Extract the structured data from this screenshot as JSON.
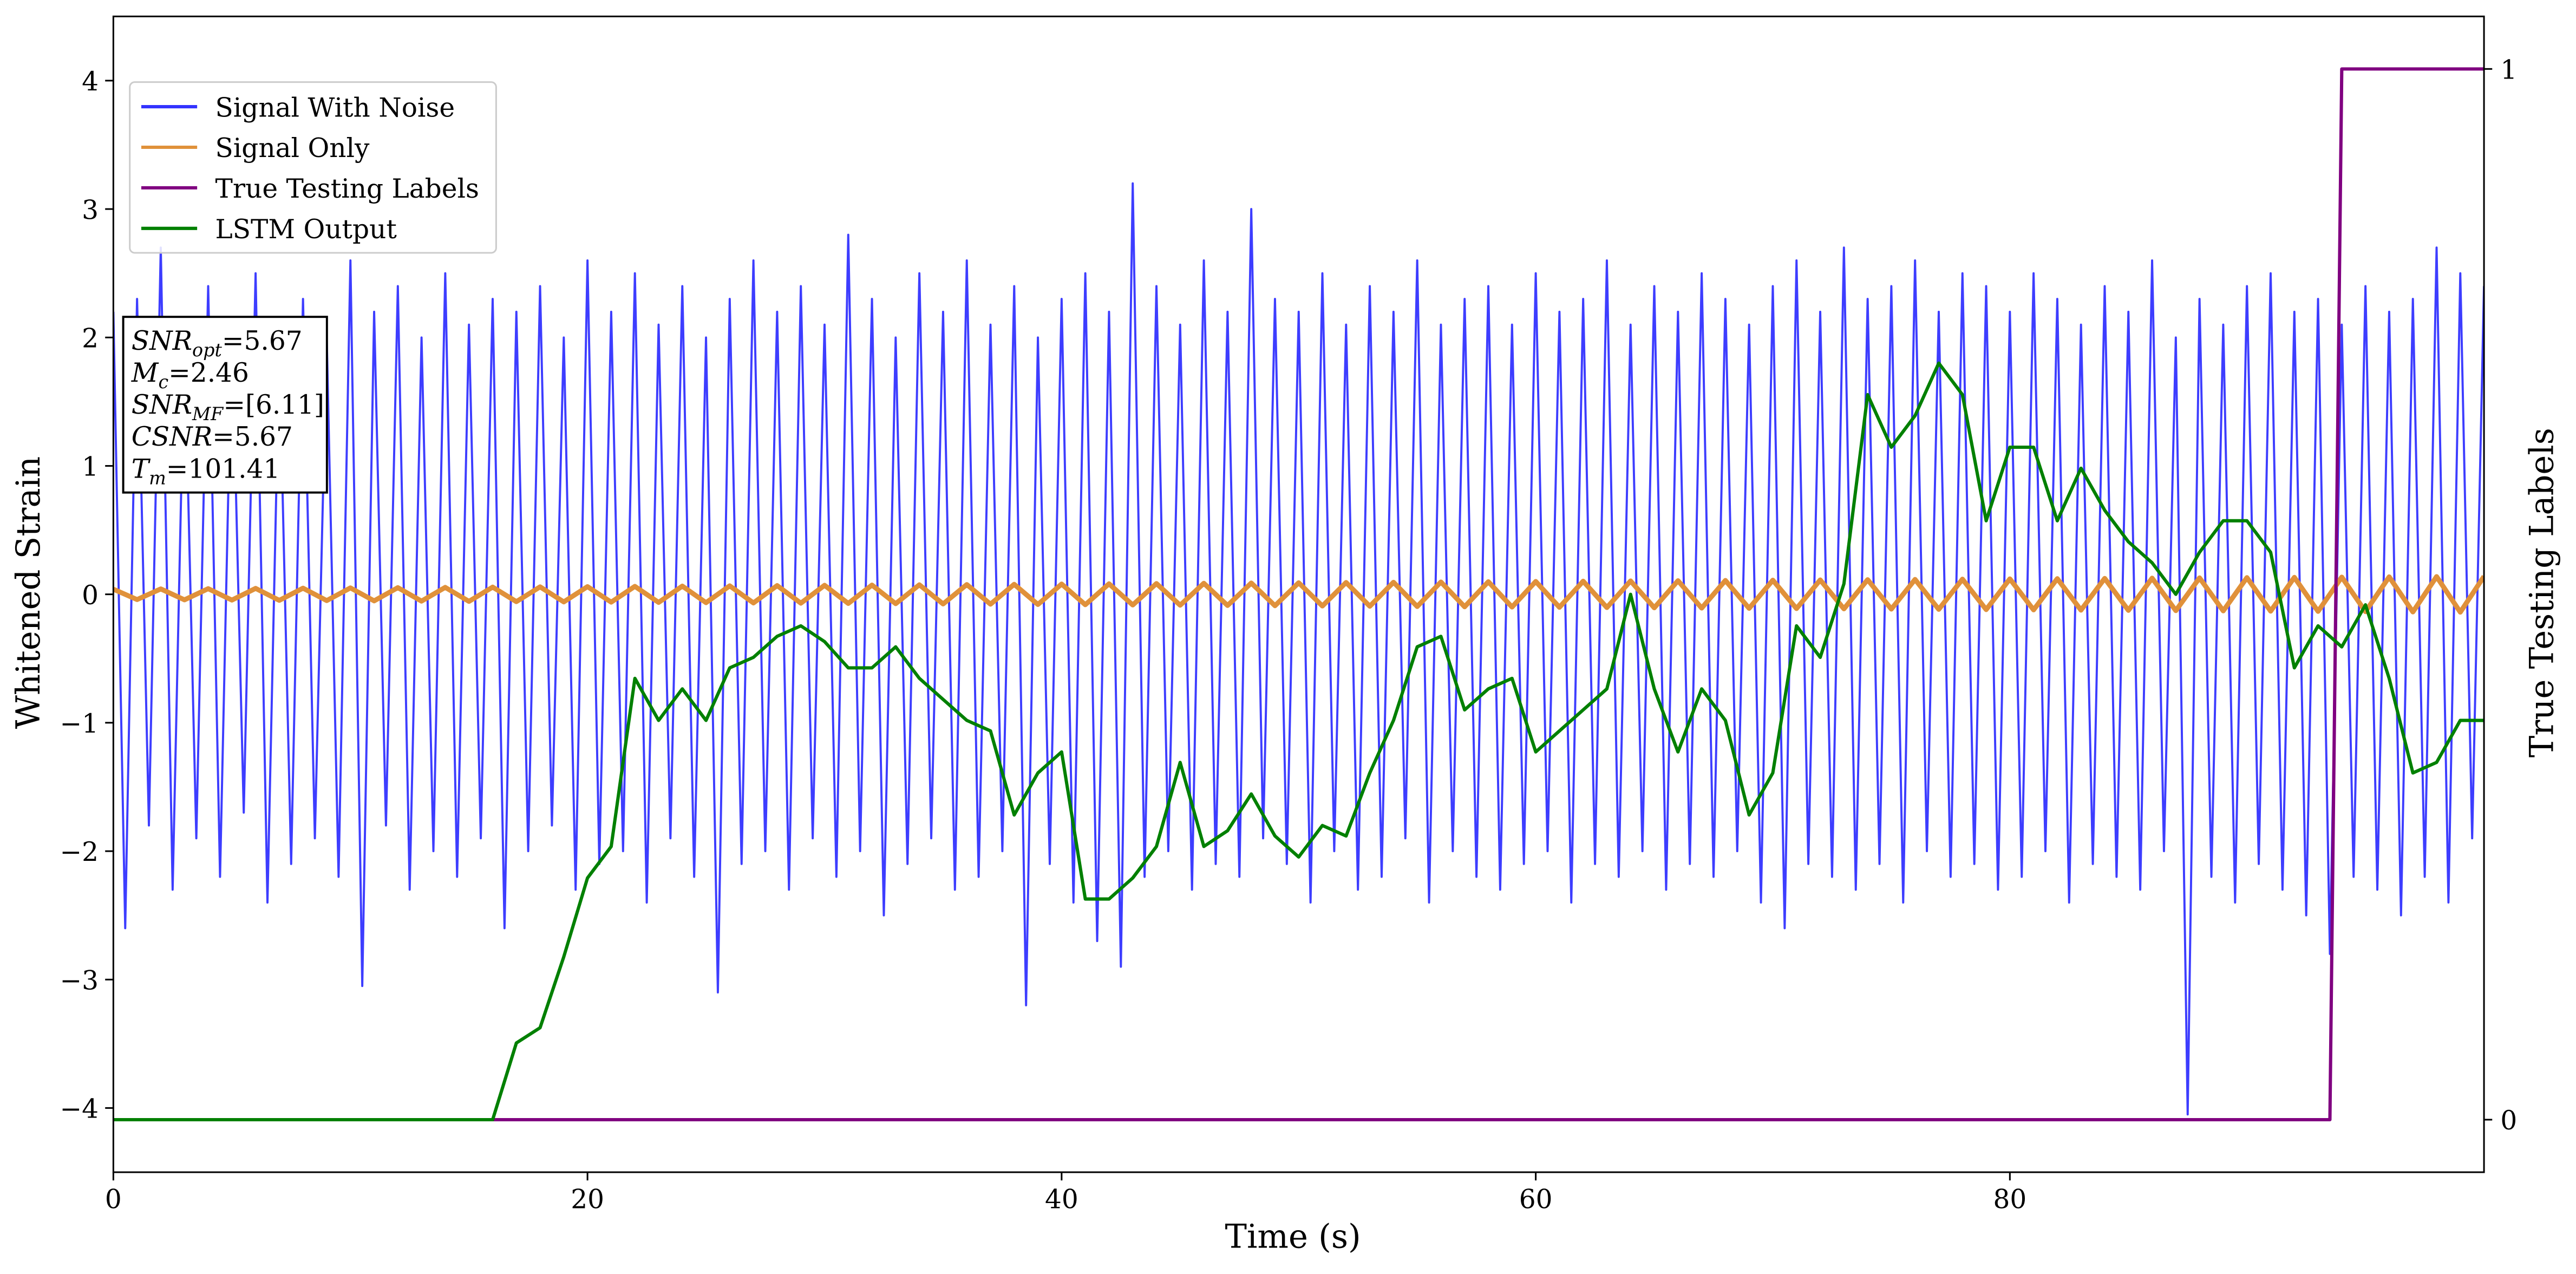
{
  "chart_data": {
    "type": "line",
    "xlabel": "Time (s)",
    "ylabel": "Whitened Strain",
    "y2label": "True Testing Labels",
    "xlim": [
      0,
      100
    ],
    "xticks": [
      0,
      20,
      40,
      60,
      80
    ],
    "ylim": [
      -4.5,
      4.5
    ],
    "yticks": [
      {
        "value": -4,
        "label": "−4"
      },
      {
        "value": -3,
        "label": "−3"
      },
      {
        "value": -2,
        "label": "−2"
      },
      {
        "value": -1,
        "label": "−1"
      },
      0,
      1,
      2,
      3,
      4
    ],
    "y2lim": [
      -0.05,
      1.05
    ],
    "y2ticks": [
      0,
      1
    ],
    "legend": "upper left",
    "annotation": [
      {
        "name": "SNR",
        "sub": "opt",
        "value": "=5.67"
      },
      {
        "name": "M",
        "sub": "c",
        "value": "=2.46"
      },
      {
        "name": "SNR",
        "sub": "MF",
        "value": "=[6.11]"
      },
      {
        "name": "CSNR",
        "value": "=5.67"
      },
      {
        "name": "T",
        "sub": "m",
        "value": "=101.41"
      }
    ],
    "x": [
      0,
      1,
      2,
      3,
      4,
      5,
      6,
      7,
      8,
      9,
      10,
      11,
      12,
      13,
      14,
      15,
      16,
      17,
      18,
      19,
      20,
      21,
      22,
      23,
      24,
      25,
      26,
      27,
      28,
      29,
      30,
      31,
      32,
      33,
      34,
      35,
      36,
      37,
      38,
      39,
      40,
      41,
      42,
      43,
      44,
      45,
      46,
      47,
      48,
      49,
      50,
      51,
      52,
      53,
      54,
      55,
      56,
      57,
      58,
      59,
      60,
      61,
      62,
      63,
      64,
      65,
      66,
      67,
      68,
      69,
      70,
      71,
      72,
      73,
      74,
      75,
      76,
      77,
      78,
      79,
      80,
      81,
      82,
      83,
      84,
      85,
      86,
      87,
      88,
      89,
      90,
      91,
      92,
      93,
      94,
      95,
      96,
      97,
      98,
      99,
      100
    ],
    "series": [
      {
        "name": "Signal With Noise",
        "color": "#3333ff",
        "x": [
          0,
          0.5,
          1,
          1.5,
          2,
          2.5,
          3,
          3.5,
          4,
          4.5,
          5,
          5.5,
          6,
          6.5,
          7,
          7.5,
          8,
          8.5,
          9,
          9.5,
          10,
          10.5,
          11,
          11.5,
          12,
          12.5,
          13,
          13.5,
          14,
          14.5,
          15,
          15.5,
          16,
          16.5,
          17,
          17.5,
          18,
          18.5,
          19,
          19.5,
          20,
          20.5,
          21,
          21.5,
          22,
          22.5,
          23,
          23.5,
          24,
          24.5,
          25,
          25.5,
          26,
          26.5,
          27,
          27.5,
          28,
          28.5,
          29,
          29.5,
          30,
          30.5,
          31,
          31.5,
          32,
          32.5,
          33,
          33.5,
          34,
          34.5,
          35,
          35.5,
          36,
          36.5,
          37,
          37.5,
          38,
          38.5,
          39,
          39.5,
          40,
          40.5,
          41,
          41.5,
          42,
          42.5,
          43,
          43.5,
          44,
          44.5,
          45,
          45.5,
          46,
          46.5,
          47,
          47.5,
          48,
          48.5,
          49,
          49.5,
          50,
          50.5,
          51,
          51.5,
          52,
          52.5,
          53,
          53.5,
          54,
          54.5,
          55,
          55.5,
          56,
          56.5,
          57,
          57.5,
          58,
          58.5,
          59,
          59.5,
          60,
          60.5,
          61,
          61.5,
          62,
          62.5,
          63,
          63.5,
          64,
          64.5,
          65,
          65.5,
          66,
          66.5,
          67,
          67.5,
          68,
          68.5,
          69,
          69.5,
          70,
          70.5,
          71,
          71.5,
          72,
          72.5,
          73,
          73.5,
          74,
          74.5,
          75,
          75.5,
          76,
          76.5,
          77,
          77.5,
          78,
          78.5,
          79,
          79.5,
          80,
          80.5,
          81,
          81.5,
          82,
          82.5,
          83,
          83.5,
          84,
          84.5,
          85,
          85.5,
          86,
          86.5,
          87,
          87.5,
          88,
          88.5,
          89,
          89.5,
          90,
          90.5,
          91,
          91.5,
          92,
          92.5,
          93,
          93.5,
          94,
          94.5,
          95,
          95.5,
          96,
          96.5,
          97,
          97.5,
          98,
          98.5,
          99,
          99.5,
          100
        ],
        "values": [
          2.2,
          -2.6,
          2.3,
          -1.8,
          2.7,
          -2.3,
          2.0,
          -1.9,
          2.4,
          -2.2,
          2.1,
          -1.7,
          2.5,
          -2.4,
          1.9,
          -2.1,
          2.3,
          -1.9,
          2.0,
          -2.2,
          2.6,
          -3.05,
          2.2,
          -1.8,
          2.4,
          -2.3,
          2.0,
          -2.0,
          2.5,
          -2.2,
          2.1,
          -1.9,
          2.3,
          -2.6,
          2.2,
          -2.0,
          2.4,
          -1.8,
          2.0,
          -2.3,
          2.6,
          -2.1,
          2.2,
          -2.0,
          2.5,
          -2.4,
          2.1,
          -1.9,
          2.4,
          -2.2,
          2.0,
          -3.1,
          2.3,
          -2.1,
          2.6,
          -2.0,
          2.2,
          -2.3,
          2.4,
          -1.9,
          2.1,
          -2.2,
          2.8,
          -2.0,
          2.3,
          -2.5,
          2.0,
          -2.1,
          2.5,
          -1.9,
          2.2,
          -2.3,
          2.6,
          -2.2,
          2.1,
          -2.0,
          2.4,
          -3.2,
          2.0,
          -2.1,
          2.3,
          -2.4,
          2.5,
          -2.7,
          2.2,
          -2.9,
          3.2,
          -2.2,
          2.4,
          -2.0,
          2.1,
          -2.3,
          2.6,
          -2.1,
          2.2,
          -2.2,
          3.0,
          -1.9,
          2.3,
          -2.1,
          2.2,
          -2.4,
          2.5,
          -2.0,
          2.1,
          -2.3,
          2.4,
          -2.2,
          2.2,
          -1.9,
          2.6,
          -2.4,
          2.1,
          -2.0,
          2.3,
          -2.2,
          2.4,
          -2.3,
          2.1,
          -2.1,
          2.5,
          -2.0,
          2.2,
          -2.4,
          2.3,
          -2.1,
          2.6,
          -2.2,
          2.1,
          -2.0,
          2.4,
          -2.3,
          2.2,
          -2.1,
          2.5,
          -2.2,
          2.3,
          -2.0,
          2.1,
          -2.4,
          2.4,
          -2.6,
          2.6,
          -2.1,
          2.2,
          -2.2,
          2.7,
          -2.3,
          2.3,
          -2.1,
          2.4,
          -2.4,
          2.6,
          -2.0,
          2.2,
          -2.2,
          2.5,
          -2.1,
          2.4,
          -2.3,
          2.2,
          -2.2,
          2.5,
          -2.0,
          2.3,
          -2.4,
          2.1,
          -2.1,
          2.4,
          -2.2,
          2.2,
          -2.3,
          2.6,
          -2.0,
          2.0,
          -4.05,
          2.3,
          -2.2,
          2.1,
          -2.4,
          2.4,
          -2.1,
          2.5,
          -2.3,
          2.2,
          -2.5,
          2.3,
          -2.8,
          2.1,
          -2.2,
          2.4,
          -2.3,
          2.2,
          -2.5,
          2.3,
          -2.2,
          2.7,
          -2.4,
          2.5,
          -1.9,
          2.4
        ]
      },
      {
        "name": "Signal Only",
        "color": "#e0913a",
        "values": [
          0.04,
          -0.041,
          0.042,
          -0.043,
          0.044,
          -0.045,
          0.046,
          -0.047,
          0.048,
          -0.049,
          0.05,
          -0.051,
          0.052,
          -0.053,
          0.054,
          -0.055,
          0.056,
          -0.057,
          0.058,
          -0.059,
          0.06,
          -0.061,
          0.062,
          -0.063,
          0.064,
          -0.065,
          0.066,
          -0.067,
          0.068,
          -0.069,
          0.07,
          -0.071,
          0.072,
          -0.073,
          0.074,
          -0.075,
          0.076,
          -0.077,
          0.078,
          -0.079,
          0.08,
          -0.081,
          0.082,
          -0.083,
          0.084,
          -0.085,
          0.086,
          -0.087,
          0.088,
          -0.089,
          0.09,
          -0.091,
          0.092,
          -0.093,
          0.094,
          -0.095,
          0.096,
          -0.097,
          0.098,
          -0.099,
          0.1,
          -0.101,
          0.102,
          -0.103,
          0.104,
          -0.105,
          0.106,
          -0.107,
          0.108,
          -0.109,
          0.11,
          -0.111,
          0.112,
          -0.113,
          0.114,
          -0.115,
          0.116,
          -0.117,
          0.118,
          -0.119,
          0.12,
          -0.121,
          0.122,
          -0.123,
          0.124,
          -0.125,
          0.126,
          -0.127,
          0.128,
          -0.129,
          0.13,
          -0.131,
          0.132,
          -0.133,
          0.134,
          -0.135,
          0.136,
          -0.137,
          0.138,
          -0.139,
          0.14
        ]
      },
      {
        "name": "True Testing Labels",
        "color": "#800080",
        "axis": "y2",
        "x": [
          0,
          93.5,
          94,
          100
        ],
        "values": [
          0,
          0,
          1,
          1
        ]
      },
      {
        "name": "LSTM Output",
        "color": "#008000",
        "axis": "y2",
        "values": [
          0,
          0,
          0,
          0,
          0,
          0,
          0,
          0,
          0,
          0,
          0,
          0,
          0,
          0,
          0,
          0,
          0,
          0.073,
          0.0875,
          0.155,
          0.23,
          0.26,
          0.42,
          0.38,
          0.41,
          0.38,
          0.43,
          0.44,
          0.46,
          0.47,
          0.455,
          0.43,
          0.43,
          0.45,
          0.42,
          0.4,
          0.38,
          0.37,
          0.29,
          0.33,
          0.35,
          0.21,
          0.21,
          0.23,
          0.26,
          0.34,
          0.26,
          0.275,
          0.31,
          0.27,
          0.25,
          0.28,
          0.27,
          0.33,
          0.38,
          0.45,
          0.46,
          0.39,
          0.41,
          0.42,
          0.35,
          0.37,
          0.39,
          0.41,
          0.5,
          0.41,
          0.35,
          0.41,
          0.38,
          0.29,
          0.33,
          0.47,
          0.44,
          0.51,
          0.69,
          0.64,
          0.67,
          0.72,
          0.69,
          0.57,
          0.64,
          0.64,
          0.57,
          0.62,
          0.58,
          0.55,
          0.53,
          0.5,
          0.54,
          0.57,
          0.57,
          0.54,
          0.43,
          0.47,
          0.45,
          0.49,
          0.42,
          0.33,
          0.34,
          0.38,
          0.38
        ]
      }
    ]
  }
}
